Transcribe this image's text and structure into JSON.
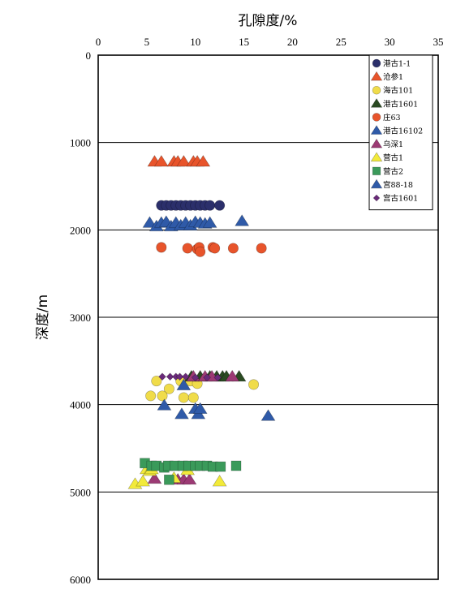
{
  "chart_data": {
    "type": "scatter",
    "xlabel": "孔隙度/%",
    "ylabel": "深度/m",
    "xlim": [
      0,
      35
    ],
    "ylim": [
      0,
      6000
    ],
    "x_axis_position": "top",
    "y_inverted": true,
    "x_ticks": [
      "0",
      "5",
      "10",
      "15",
      "20",
      "25",
      "30",
      "35"
    ],
    "y_ticks": [
      "0",
      "1000",
      "2000",
      "3000",
      "4000",
      "5000",
      "6000"
    ],
    "grid": "horizontal",
    "legend_position": "top-right",
    "series": [
      {
        "name": "港古1-1",
        "marker": "circle",
        "color": "#2b2f6b",
        "points": [
          [
            6.5,
            1720
          ],
          [
            7.0,
            1720
          ],
          [
            7.5,
            1720
          ],
          [
            8.0,
            1720
          ],
          [
            8.5,
            1720
          ],
          [
            9.0,
            1720
          ],
          [
            9.5,
            1720
          ],
          [
            10.0,
            1720
          ],
          [
            10.5,
            1720
          ],
          [
            11.0,
            1720
          ],
          [
            11.5,
            1720
          ],
          [
            12.5,
            1720
          ]
        ]
      },
      {
        "name": "沧参1",
        "marker": "triangle",
        "color": "#e8542b",
        "points": [
          [
            5.8,
            1220
          ],
          [
            6.5,
            1220
          ],
          [
            7.8,
            1220
          ],
          [
            8.2,
            1220
          ],
          [
            8.8,
            1220
          ],
          [
            9.8,
            1220
          ],
          [
            10.2,
            1220
          ],
          [
            10.8,
            1220
          ]
        ]
      },
      {
        "name": "海古101",
        "marker": "circle",
        "color": "#f0dc4a",
        "points": [
          [
            6.0,
            3730
          ],
          [
            7.3,
            3820
          ],
          [
            8.5,
            3730
          ],
          [
            9.5,
            3730
          ],
          [
            10.2,
            3760
          ],
          [
            16.0,
            3770
          ],
          [
            5.4,
            3900
          ],
          [
            6.6,
            3900
          ],
          [
            8.8,
            3920
          ],
          [
            9.8,
            3920
          ]
        ]
      },
      {
        "name": "港古1601",
        "marker": "triangle",
        "color": "#2a4a22",
        "points": [
          [
            9.6,
            3680
          ],
          [
            10.5,
            3680
          ],
          [
            11.5,
            3680
          ],
          [
            12.2,
            3680
          ],
          [
            12.8,
            3680
          ],
          [
            13.2,
            3680
          ],
          [
            14.5,
            3680
          ]
        ]
      },
      {
        "name": "庄63",
        "marker": "circle",
        "color": "#e8542b",
        "points": [
          [
            6.5,
            2200
          ],
          [
            9.2,
            2210
          ],
          [
            10.2,
            2220
          ],
          [
            10.4,
            2200
          ],
          [
            10.5,
            2250
          ],
          [
            11.8,
            2200
          ],
          [
            12.0,
            2210
          ],
          [
            13.9,
            2210
          ],
          [
            16.8,
            2210
          ]
        ]
      },
      {
        "name": "港古16102",
        "marker": "triangle",
        "color": "#2f5aa8",
        "points": [
          [
            5.3,
            1920
          ],
          [
            6.0,
            1960
          ],
          [
            6.5,
            1920
          ],
          [
            7.0,
            1910
          ],
          [
            7.5,
            1960
          ],
          [
            8.0,
            1920
          ],
          [
            8.5,
            1950
          ],
          [
            9.0,
            1920
          ],
          [
            9.5,
            1950
          ],
          [
            10.0,
            1910
          ],
          [
            10.5,
            1920
          ],
          [
            11.0,
            1930
          ],
          [
            11.5,
            1920
          ],
          [
            14.8,
            1900
          ]
        ]
      },
      {
        "name": "乌深1",
        "marker": "triangle",
        "color": "#9c3a74",
        "points": [
          [
            5.8,
            4850
          ],
          [
            8.2,
            4860
          ],
          [
            8.8,
            4860
          ],
          [
            9.4,
            4860
          ],
          [
            9.8,
            3680
          ],
          [
            11.0,
            3680
          ],
          [
            11.7,
            3680
          ],
          [
            13.8,
            3680
          ]
        ]
      },
      {
        "name": "营古1",
        "marker": "triangle",
        "color": "#f2ea3a",
        "points": [
          [
            3.8,
            4910
          ],
          [
            4.6,
            4880
          ],
          [
            5.0,
            4740
          ],
          [
            5.3,
            4760
          ],
          [
            5.5,
            4740
          ],
          [
            7.8,
            4840
          ],
          [
            9.2,
            4750
          ],
          [
            12.5,
            4880
          ]
        ]
      },
      {
        "name": "营古2",
        "marker": "square",
        "color": "#3a9a5a",
        "points": [
          [
            4.8,
            4670
          ],
          [
            5.5,
            4700
          ],
          [
            6.0,
            4700
          ],
          [
            6.8,
            4720
          ],
          [
            7.2,
            4700
          ],
          [
            7.9,
            4700
          ],
          [
            8.7,
            4700
          ],
          [
            9.3,
            4700
          ],
          [
            10.0,
            4700
          ],
          [
            10.5,
            4700
          ],
          [
            11.2,
            4700
          ],
          [
            11.8,
            4710
          ],
          [
            12.6,
            4710
          ],
          [
            14.2,
            4700
          ],
          [
            7.3,
            4860
          ]
        ]
      },
      {
        "name": "宫88-18",
        "marker": "triangle",
        "color": "#2f5aa8",
        "points": [
          [
            6.8,
            4010
          ],
          [
            8.8,
            3780
          ],
          [
            8.6,
            4110
          ],
          [
            10.0,
            4050
          ],
          [
            10.3,
            4110
          ],
          [
            10.5,
            4050
          ],
          [
            17.5,
            4130
          ]
        ]
      },
      {
        "name": "宫古1601",
        "marker": "diamond",
        "color": "#6a2a7a",
        "points": [
          [
            6.6,
            3680
          ],
          [
            7.4,
            3680
          ],
          [
            8.0,
            3680
          ],
          [
            8.4,
            3680
          ],
          [
            9.0,
            3680
          ],
          [
            10.0,
            3690
          ],
          [
            11.2,
            3690
          ],
          [
            12.3,
            3690
          ]
        ]
      }
    ]
  }
}
